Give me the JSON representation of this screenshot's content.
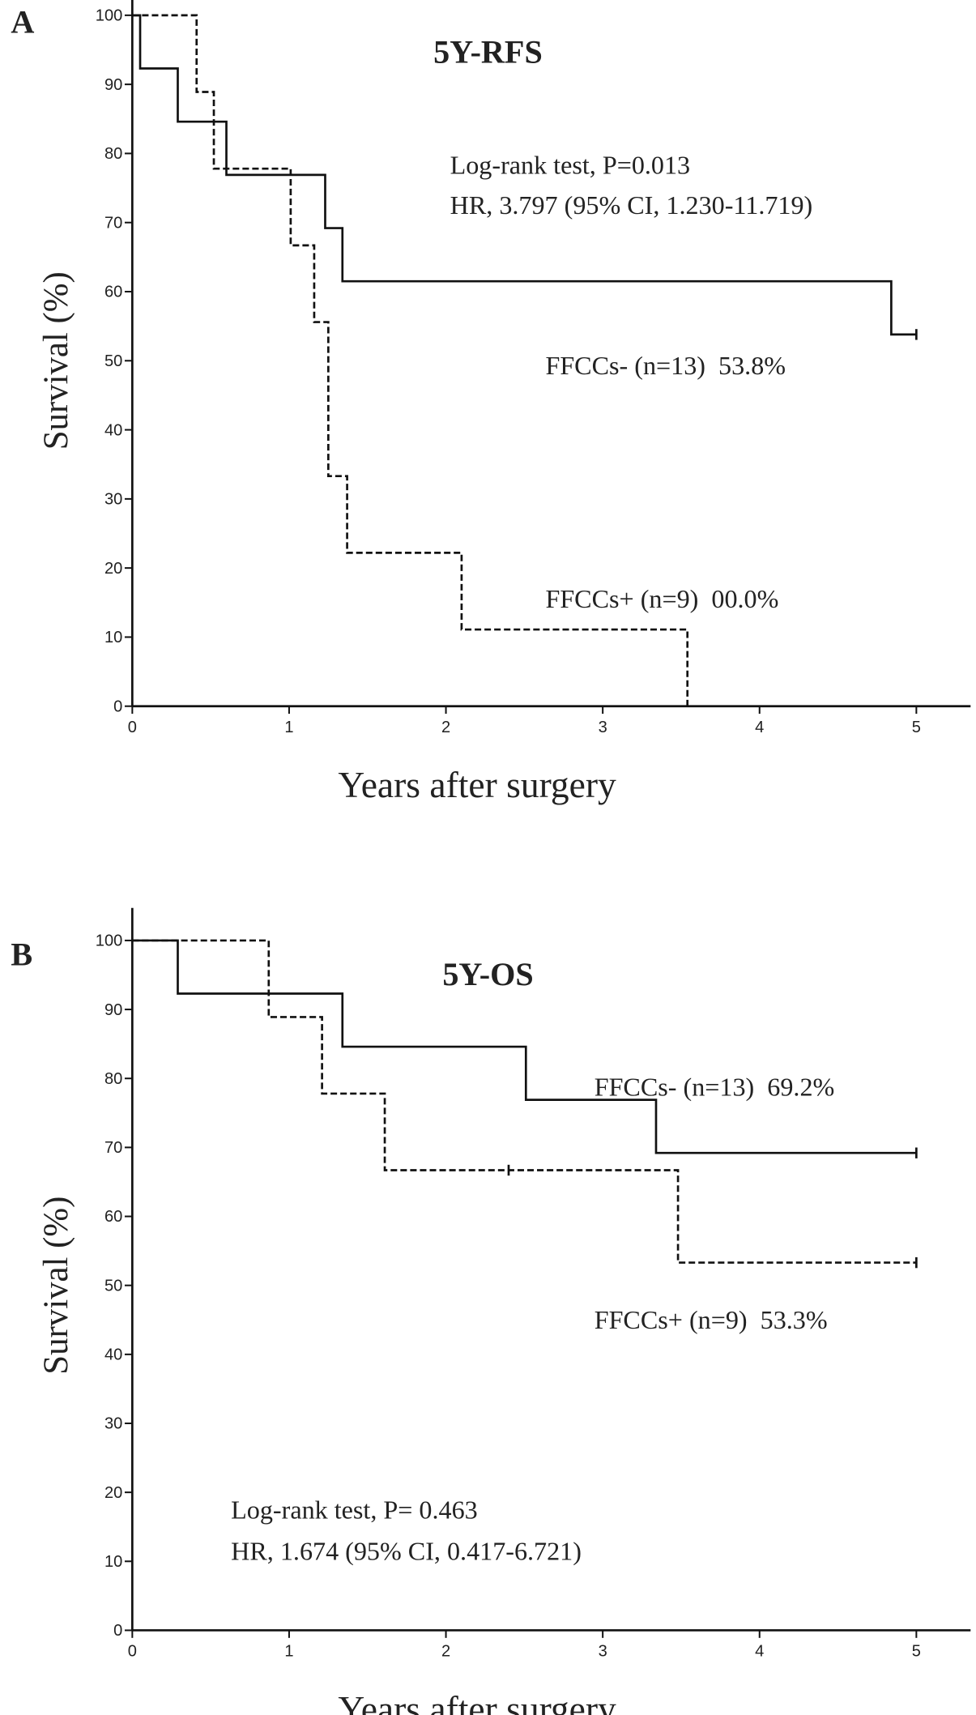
{
  "chart_data": [
    {
      "type": "line",
      "panel_label": "A",
      "title": "5Y-RFS",
      "xlabel": "Years after surgery",
      "ylabel": "Survival (%)",
      "xlim": [
        0,
        5
      ],
      "ylim": [
        0,
        100
      ],
      "xticks": [
        "0",
        "1",
        "2",
        "3",
        "4",
        "5"
      ],
      "yticks": [
        "0",
        "10",
        "20",
        "30",
        "40",
        "50",
        "60",
        "70",
        "80",
        "90",
        "100"
      ],
      "annotations": [
        "Log-rank test, P=0.013",
        "HR, 3.797 (95% CI, 1.230-11.719)"
      ],
      "series": [
        {
          "name": "FFCCs- (n=13)  53.8%",
          "style": "solid",
          "end": 5.0,
          "steps": [
            [
              0.05,
              92.3
            ],
            [
              0.29,
              84.6
            ],
            [
              0.6,
              76.9
            ],
            [
              1.23,
              69.2
            ],
            [
              1.34,
              61.5
            ],
            [
              4.84,
              53.8
            ]
          ],
          "censored": [
            [
              5.0,
              53.8
            ]
          ]
        },
        {
          "name": "FFCCs+ (n=9)  00.0%",
          "style": "dashed",
          "end": 3.54,
          "steps": [
            [
              0.41,
              88.9
            ],
            [
              0.52,
              77.8
            ],
            [
              1.01,
              66.7
            ],
            [
              1.16,
              55.6
            ],
            [
              1.25,
              33.3
            ],
            [
              1.37,
              22.2
            ],
            [
              2.1,
              11.1
            ],
            [
              3.54,
              0
            ]
          ],
          "censored": []
        }
      ]
    },
    {
      "type": "line",
      "panel_label": "B",
      "title": "5Y-OS",
      "xlabel": "Years after surgery",
      "ylabel": "Survival (%)",
      "xlim": [
        0,
        5
      ],
      "ylim": [
        0,
        100
      ],
      "xticks": [
        "0",
        "1",
        "2",
        "3",
        "4",
        "5"
      ],
      "yticks": [
        "0",
        "10",
        "20",
        "30",
        "40",
        "50",
        "60",
        "70",
        "80",
        "90",
        "100"
      ],
      "annotations": [
        "Log-rank test, P= 0.463",
        "HR, 1.674 (95% CI, 0.417-6.721)"
      ],
      "series": [
        {
          "name": "FFCCs- (n=13)  69.2%",
          "style": "solid",
          "end": 5.0,
          "steps": [
            [
              0.29,
              92.3
            ],
            [
              1.34,
              84.6
            ],
            [
              2.51,
              76.9
            ],
            [
              3.34,
              69.2
            ]
          ],
          "censored": [
            [
              5.0,
              69.2
            ]
          ]
        },
        {
          "name": "FFCCs+ (n=9)  53.3%",
          "style": "dashed",
          "end": 5.0,
          "steps": [
            [
              0.87,
              88.9
            ],
            [
              1.21,
              77.8
            ],
            [
              1.61,
              66.7
            ],
            [
              3.48,
              53.3
            ]
          ],
          "censored": [
            [
              2.4,
              66.7
            ],
            [
              5.0,
              53.3
            ]
          ]
        }
      ]
    }
  ]
}
